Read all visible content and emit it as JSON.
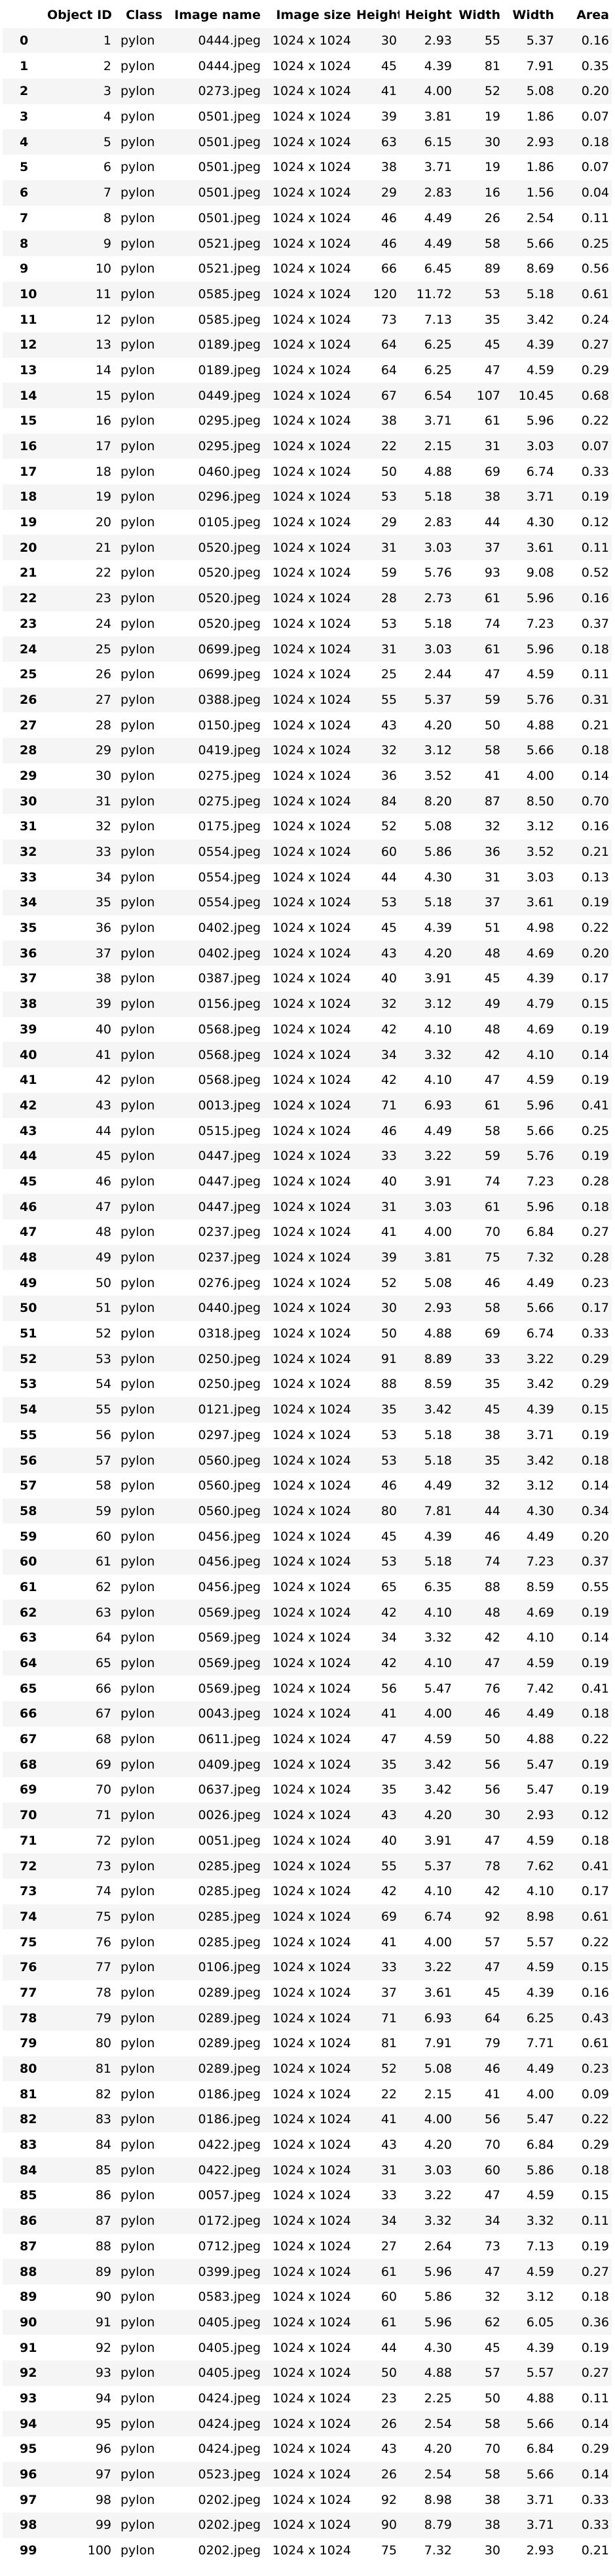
{
  "table": {
    "headers": [
      "",
      "Object ID",
      "Class",
      "Image name",
      "Image size",
      "Height",
      "Height",
      "Width",
      "Width",
      "Area"
    ],
    "rows": [
      [
        "0",
        "1",
        "pylon",
        "0444.jpeg",
        "1024 x 1024",
        "30",
        "2.93",
        "55",
        "5.37",
        "0.16"
      ],
      [
        "1",
        "2",
        "pylon",
        "0444.jpeg",
        "1024 x 1024",
        "45",
        "4.39",
        "81",
        "7.91",
        "0.35"
      ],
      [
        "2",
        "3",
        "pylon",
        "0273.jpeg",
        "1024 x 1024",
        "41",
        "4.00",
        "52",
        "5.08",
        "0.20"
      ],
      [
        "3",
        "4",
        "pylon",
        "0501.jpeg",
        "1024 x 1024",
        "39",
        "3.81",
        "19",
        "1.86",
        "0.07"
      ],
      [
        "4",
        "5",
        "pylon",
        "0501.jpeg",
        "1024 x 1024",
        "63",
        "6.15",
        "30",
        "2.93",
        "0.18"
      ],
      [
        "5",
        "6",
        "pylon",
        "0501.jpeg",
        "1024 x 1024",
        "38",
        "3.71",
        "19",
        "1.86",
        "0.07"
      ],
      [
        "6",
        "7",
        "pylon",
        "0501.jpeg",
        "1024 x 1024",
        "29",
        "2.83",
        "16",
        "1.56",
        "0.04"
      ],
      [
        "7",
        "8",
        "pylon",
        "0501.jpeg",
        "1024 x 1024",
        "46",
        "4.49",
        "26",
        "2.54",
        "0.11"
      ],
      [
        "8",
        "9",
        "pylon",
        "0521.jpeg",
        "1024 x 1024",
        "46",
        "4.49",
        "58",
        "5.66",
        "0.25"
      ],
      [
        "9",
        "10",
        "pylon",
        "0521.jpeg",
        "1024 x 1024",
        "66",
        "6.45",
        "89",
        "8.69",
        "0.56"
      ],
      [
        "10",
        "11",
        "pylon",
        "0585.jpeg",
        "1024 x 1024",
        "120",
        "11.72",
        "53",
        "5.18",
        "0.61"
      ],
      [
        "11",
        "12",
        "pylon",
        "0585.jpeg",
        "1024 x 1024",
        "73",
        "7.13",
        "35",
        "3.42",
        "0.24"
      ],
      [
        "12",
        "13",
        "pylon",
        "0189.jpeg",
        "1024 x 1024",
        "64",
        "6.25",
        "45",
        "4.39",
        "0.27"
      ],
      [
        "13",
        "14",
        "pylon",
        "0189.jpeg",
        "1024 x 1024",
        "64",
        "6.25",
        "47",
        "4.59",
        "0.29"
      ],
      [
        "14",
        "15",
        "pylon",
        "0449.jpeg",
        "1024 x 1024",
        "67",
        "6.54",
        "107",
        "10.45",
        "0.68"
      ],
      [
        "15",
        "16",
        "pylon",
        "0295.jpeg",
        "1024 x 1024",
        "38",
        "3.71",
        "61",
        "5.96",
        "0.22"
      ],
      [
        "16",
        "17",
        "pylon",
        "0295.jpeg",
        "1024 x 1024",
        "22",
        "2.15",
        "31",
        "3.03",
        "0.07"
      ],
      [
        "17",
        "18",
        "pylon",
        "0460.jpeg",
        "1024 x 1024",
        "50",
        "4.88",
        "69",
        "6.74",
        "0.33"
      ],
      [
        "18",
        "19",
        "pylon",
        "0296.jpeg",
        "1024 x 1024",
        "53",
        "5.18",
        "38",
        "3.71",
        "0.19"
      ],
      [
        "19",
        "20",
        "pylon",
        "0105.jpeg",
        "1024 x 1024",
        "29",
        "2.83",
        "44",
        "4.30",
        "0.12"
      ],
      [
        "20",
        "21",
        "pylon",
        "0520.jpeg",
        "1024 x 1024",
        "31",
        "3.03",
        "37",
        "3.61",
        "0.11"
      ],
      [
        "21",
        "22",
        "pylon",
        "0520.jpeg",
        "1024 x 1024",
        "59",
        "5.76",
        "93",
        "9.08",
        "0.52"
      ],
      [
        "22",
        "23",
        "pylon",
        "0520.jpeg",
        "1024 x 1024",
        "28",
        "2.73",
        "61",
        "5.96",
        "0.16"
      ],
      [
        "23",
        "24",
        "pylon",
        "0520.jpeg",
        "1024 x 1024",
        "53",
        "5.18",
        "74",
        "7.23",
        "0.37"
      ],
      [
        "24",
        "25",
        "pylon",
        "0699.jpeg",
        "1024 x 1024",
        "31",
        "3.03",
        "61",
        "5.96",
        "0.18"
      ],
      [
        "25",
        "26",
        "pylon",
        "0699.jpeg",
        "1024 x 1024",
        "25",
        "2.44",
        "47",
        "4.59",
        "0.11"
      ],
      [
        "26",
        "27",
        "pylon",
        "0388.jpeg",
        "1024 x 1024",
        "55",
        "5.37",
        "59",
        "5.76",
        "0.31"
      ],
      [
        "27",
        "28",
        "pylon",
        "0150.jpeg",
        "1024 x 1024",
        "43",
        "4.20",
        "50",
        "4.88",
        "0.21"
      ],
      [
        "28",
        "29",
        "pylon",
        "0419.jpeg",
        "1024 x 1024",
        "32",
        "3.12",
        "58",
        "5.66",
        "0.18"
      ],
      [
        "29",
        "30",
        "pylon",
        "0275.jpeg",
        "1024 x 1024",
        "36",
        "3.52",
        "41",
        "4.00",
        "0.14"
      ],
      [
        "30",
        "31",
        "pylon",
        "0275.jpeg",
        "1024 x 1024",
        "84",
        "8.20",
        "87",
        "8.50",
        "0.70"
      ],
      [
        "31",
        "32",
        "pylon",
        "0175.jpeg",
        "1024 x 1024",
        "52",
        "5.08",
        "32",
        "3.12",
        "0.16"
      ],
      [
        "32",
        "33",
        "pylon",
        "0554.jpeg",
        "1024 x 1024",
        "60",
        "5.86",
        "36",
        "3.52",
        "0.21"
      ],
      [
        "33",
        "34",
        "pylon",
        "0554.jpeg",
        "1024 x 1024",
        "44",
        "4.30",
        "31",
        "3.03",
        "0.13"
      ],
      [
        "34",
        "35",
        "pylon",
        "0554.jpeg",
        "1024 x 1024",
        "53",
        "5.18",
        "37",
        "3.61",
        "0.19"
      ],
      [
        "35",
        "36",
        "pylon",
        "0402.jpeg",
        "1024 x 1024",
        "45",
        "4.39",
        "51",
        "4.98",
        "0.22"
      ],
      [
        "36",
        "37",
        "pylon",
        "0402.jpeg",
        "1024 x 1024",
        "43",
        "4.20",
        "48",
        "4.69",
        "0.20"
      ],
      [
        "37",
        "38",
        "pylon",
        "0387.jpeg",
        "1024 x 1024",
        "40",
        "3.91",
        "45",
        "4.39",
        "0.17"
      ],
      [
        "38",
        "39",
        "pylon",
        "0156.jpeg",
        "1024 x 1024",
        "32",
        "3.12",
        "49",
        "4.79",
        "0.15"
      ],
      [
        "39",
        "40",
        "pylon",
        "0568.jpeg",
        "1024 x 1024",
        "42",
        "4.10",
        "48",
        "4.69",
        "0.19"
      ],
      [
        "40",
        "41",
        "pylon",
        "0568.jpeg",
        "1024 x 1024",
        "34",
        "3.32",
        "42",
        "4.10",
        "0.14"
      ],
      [
        "41",
        "42",
        "pylon",
        "0568.jpeg",
        "1024 x 1024",
        "42",
        "4.10",
        "47",
        "4.59",
        "0.19"
      ],
      [
        "42",
        "43",
        "pylon",
        "0013.jpeg",
        "1024 x 1024",
        "71",
        "6.93",
        "61",
        "5.96",
        "0.41"
      ],
      [
        "43",
        "44",
        "pylon",
        "0515.jpeg",
        "1024 x 1024",
        "46",
        "4.49",
        "58",
        "5.66",
        "0.25"
      ],
      [
        "44",
        "45",
        "pylon",
        "0447.jpeg",
        "1024 x 1024",
        "33",
        "3.22",
        "59",
        "5.76",
        "0.19"
      ],
      [
        "45",
        "46",
        "pylon",
        "0447.jpeg",
        "1024 x 1024",
        "40",
        "3.91",
        "74",
        "7.23",
        "0.28"
      ],
      [
        "46",
        "47",
        "pylon",
        "0447.jpeg",
        "1024 x 1024",
        "31",
        "3.03",
        "61",
        "5.96",
        "0.18"
      ],
      [
        "47",
        "48",
        "pylon",
        "0237.jpeg",
        "1024 x 1024",
        "41",
        "4.00",
        "70",
        "6.84",
        "0.27"
      ],
      [
        "48",
        "49",
        "pylon",
        "0237.jpeg",
        "1024 x 1024",
        "39",
        "3.81",
        "75",
        "7.32",
        "0.28"
      ],
      [
        "49",
        "50",
        "pylon",
        "0276.jpeg",
        "1024 x 1024",
        "52",
        "5.08",
        "46",
        "4.49",
        "0.23"
      ],
      [
        "50",
        "51",
        "pylon",
        "0440.jpeg",
        "1024 x 1024",
        "30",
        "2.93",
        "58",
        "5.66",
        "0.17"
      ],
      [
        "51",
        "52",
        "pylon",
        "0318.jpeg",
        "1024 x 1024",
        "50",
        "4.88",
        "69",
        "6.74",
        "0.33"
      ],
      [
        "52",
        "53",
        "pylon",
        "0250.jpeg",
        "1024 x 1024",
        "91",
        "8.89",
        "33",
        "3.22",
        "0.29"
      ],
      [
        "53",
        "54",
        "pylon",
        "0250.jpeg",
        "1024 x 1024",
        "88",
        "8.59",
        "35",
        "3.42",
        "0.29"
      ],
      [
        "54",
        "55",
        "pylon",
        "0121.jpeg",
        "1024 x 1024",
        "35",
        "3.42",
        "45",
        "4.39",
        "0.15"
      ],
      [
        "55",
        "56",
        "pylon",
        "0297.jpeg",
        "1024 x 1024",
        "53",
        "5.18",
        "38",
        "3.71",
        "0.19"
      ],
      [
        "56",
        "57",
        "pylon",
        "0560.jpeg",
        "1024 x 1024",
        "53",
        "5.18",
        "35",
        "3.42",
        "0.18"
      ],
      [
        "57",
        "58",
        "pylon",
        "0560.jpeg",
        "1024 x 1024",
        "46",
        "4.49",
        "32",
        "3.12",
        "0.14"
      ],
      [
        "58",
        "59",
        "pylon",
        "0560.jpeg",
        "1024 x 1024",
        "80",
        "7.81",
        "44",
        "4.30",
        "0.34"
      ],
      [
        "59",
        "60",
        "pylon",
        "0456.jpeg",
        "1024 x 1024",
        "45",
        "4.39",
        "46",
        "4.49",
        "0.20"
      ],
      [
        "60",
        "61",
        "pylon",
        "0456.jpeg",
        "1024 x 1024",
        "53",
        "5.18",
        "74",
        "7.23",
        "0.37"
      ],
      [
        "61",
        "62",
        "pylon",
        "0456.jpeg",
        "1024 x 1024",
        "65",
        "6.35",
        "88",
        "8.59",
        "0.55"
      ],
      [
        "62",
        "63",
        "pylon",
        "0569.jpeg",
        "1024 x 1024",
        "42",
        "4.10",
        "48",
        "4.69",
        "0.19"
      ],
      [
        "63",
        "64",
        "pylon",
        "0569.jpeg",
        "1024 x 1024",
        "34",
        "3.32",
        "42",
        "4.10",
        "0.14"
      ],
      [
        "64",
        "65",
        "pylon",
        "0569.jpeg",
        "1024 x 1024",
        "42",
        "4.10",
        "47",
        "4.59",
        "0.19"
      ],
      [
        "65",
        "66",
        "pylon",
        "0569.jpeg",
        "1024 x 1024",
        "56",
        "5.47",
        "76",
        "7.42",
        "0.41"
      ],
      [
        "66",
        "67",
        "pylon",
        "0043.jpeg",
        "1024 x 1024",
        "41",
        "4.00",
        "46",
        "4.49",
        "0.18"
      ],
      [
        "67",
        "68",
        "pylon",
        "0611.jpeg",
        "1024 x 1024",
        "47",
        "4.59",
        "50",
        "4.88",
        "0.22"
      ],
      [
        "68",
        "69",
        "pylon",
        "0409.jpeg",
        "1024 x 1024",
        "35",
        "3.42",
        "56",
        "5.47",
        "0.19"
      ],
      [
        "69",
        "70",
        "pylon",
        "0637.jpeg",
        "1024 x 1024",
        "35",
        "3.42",
        "56",
        "5.47",
        "0.19"
      ],
      [
        "70",
        "71",
        "pylon",
        "0026.jpeg",
        "1024 x 1024",
        "43",
        "4.20",
        "30",
        "2.93",
        "0.12"
      ],
      [
        "71",
        "72",
        "pylon",
        "0051.jpeg",
        "1024 x 1024",
        "40",
        "3.91",
        "47",
        "4.59",
        "0.18"
      ],
      [
        "72",
        "73",
        "pylon",
        "0285.jpeg",
        "1024 x 1024",
        "55",
        "5.37",
        "78",
        "7.62",
        "0.41"
      ],
      [
        "73",
        "74",
        "pylon",
        "0285.jpeg",
        "1024 x 1024",
        "42",
        "4.10",
        "42",
        "4.10",
        "0.17"
      ],
      [
        "74",
        "75",
        "pylon",
        "0285.jpeg",
        "1024 x 1024",
        "69",
        "6.74",
        "92",
        "8.98",
        "0.61"
      ],
      [
        "75",
        "76",
        "pylon",
        "0285.jpeg",
        "1024 x 1024",
        "41",
        "4.00",
        "57",
        "5.57",
        "0.22"
      ],
      [
        "76",
        "77",
        "pylon",
        "0106.jpeg",
        "1024 x 1024",
        "33",
        "3.22",
        "47",
        "4.59",
        "0.15"
      ],
      [
        "77",
        "78",
        "pylon",
        "0289.jpeg",
        "1024 x 1024",
        "37",
        "3.61",
        "45",
        "4.39",
        "0.16"
      ],
      [
        "78",
        "79",
        "pylon",
        "0289.jpeg",
        "1024 x 1024",
        "71",
        "6.93",
        "64",
        "6.25",
        "0.43"
      ],
      [
        "79",
        "80",
        "pylon",
        "0289.jpeg",
        "1024 x 1024",
        "81",
        "7.91",
        "79",
        "7.71",
        "0.61"
      ],
      [
        "80",
        "81",
        "pylon",
        "0289.jpeg",
        "1024 x 1024",
        "52",
        "5.08",
        "46",
        "4.49",
        "0.23"
      ],
      [
        "81",
        "82",
        "pylon",
        "0186.jpeg",
        "1024 x 1024",
        "22",
        "2.15",
        "41",
        "4.00",
        "0.09"
      ],
      [
        "82",
        "83",
        "pylon",
        "0186.jpeg",
        "1024 x 1024",
        "41",
        "4.00",
        "56",
        "5.47",
        "0.22"
      ],
      [
        "83",
        "84",
        "pylon",
        "0422.jpeg",
        "1024 x 1024",
        "43",
        "4.20",
        "70",
        "6.84",
        "0.29"
      ],
      [
        "84",
        "85",
        "pylon",
        "0422.jpeg",
        "1024 x 1024",
        "31",
        "3.03",
        "60",
        "5.86",
        "0.18"
      ],
      [
        "85",
        "86",
        "pylon",
        "0057.jpeg",
        "1024 x 1024",
        "33",
        "3.22",
        "47",
        "4.59",
        "0.15"
      ],
      [
        "86",
        "87",
        "pylon",
        "0172.jpeg",
        "1024 x 1024",
        "34",
        "3.32",
        "34",
        "3.32",
        "0.11"
      ],
      [
        "87",
        "88",
        "pylon",
        "0712.jpeg",
        "1024 x 1024",
        "27",
        "2.64",
        "73",
        "7.13",
        "0.19"
      ],
      [
        "88",
        "89",
        "pylon",
        "0399.jpeg",
        "1024 x 1024",
        "61",
        "5.96",
        "47",
        "4.59",
        "0.27"
      ],
      [
        "89",
        "90",
        "pylon",
        "0583.jpeg",
        "1024 x 1024",
        "60",
        "5.86",
        "32",
        "3.12",
        "0.18"
      ],
      [
        "90",
        "91",
        "pylon",
        "0405.jpeg",
        "1024 x 1024",
        "61",
        "5.96",
        "62",
        "6.05",
        "0.36"
      ],
      [
        "91",
        "92",
        "pylon",
        "0405.jpeg",
        "1024 x 1024",
        "44",
        "4.30",
        "45",
        "4.39",
        "0.19"
      ],
      [
        "92",
        "93",
        "pylon",
        "0405.jpeg",
        "1024 x 1024",
        "50",
        "4.88",
        "57",
        "5.57",
        "0.27"
      ],
      [
        "93",
        "94",
        "pylon",
        "0424.jpeg",
        "1024 x 1024",
        "23",
        "2.25",
        "50",
        "4.88",
        "0.11"
      ],
      [
        "94",
        "95",
        "pylon",
        "0424.jpeg",
        "1024 x 1024",
        "26",
        "2.54",
        "58",
        "5.66",
        "0.14"
      ],
      [
        "95",
        "96",
        "pylon",
        "0424.jpeg",
        "1024 x 1024",
        "43",
        "4.20",
        "70",
        "6.84",
        "0.29"
      ],
      [
        "96",
        "97",
        "pylon",
        "0523.jpeg",
        "1024 x 1024",
        "26",
        "2.54",
        "58",
        "5.66",
        "0.14"
      ],
      [
        "97",
        "98",
        "pylon",
        "0202.jpeg",
        "1024 x 1024",
        "92",
        "8.98",
        "38",
        "3.71",
        "0.33"
      ],
      [
        "98",
        "99",
        "pylon",
        "0202.jpeg",
        "1024 x 1024",
        "90",
        "8.79",
        "38",
        "3.71",
        "0.33"
      ],
      [
        "99",
        "100",
        "pylon",
        "0202.jpeg",
        "1024 x 1024",
        "75",
        "7.32",
        "30",
        "2.93",
        "0.21"
      ]
    ]
  }
}
